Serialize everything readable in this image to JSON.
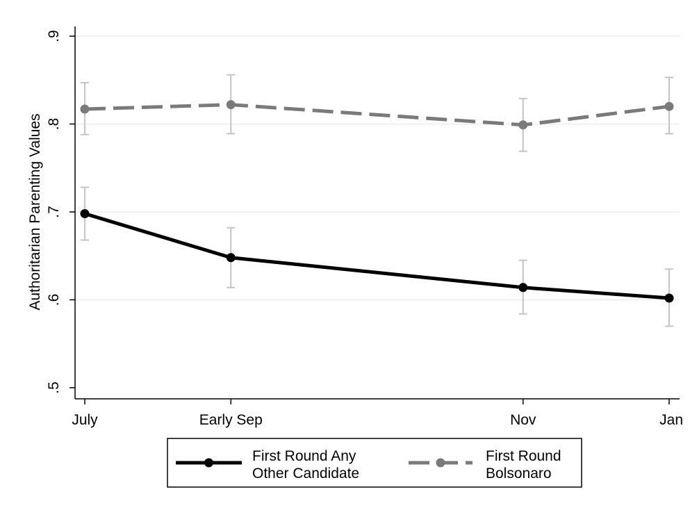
{
  "chart_data": {
    "type": "line",
    "title": "",
    "xlabel": "",
    "ylabel": "Authoritarian Parenting Values",
    "categories": [
      "July",
      "Early Sep",
      "Nov",
      "Jan"
    ],
    "x_positions": [
      0,
      1,
      3,
      4
    ],
    "xlim": [
      0,
      4
    ],
    "ylim": [
      0.5,
      0.9
    ],
    "yticks": [
      0.5,
      0.6,
      0.7,
      0.8,
      0.9
    ],
    "ytick_labels": [
      ".5",
      ".6",
      ".7",
      ".8",
      ".9"
    ],
    "grid": true,
    "legend_position": "bottom",
    "series": [
      {
        "name": "First Round Any Other Candidate",
        "legend_lines": [
          "First Round Any",
          "Other Candidate"
        ],
        "values": [
          0.698,
          0.648,
          0.614,
          0.602
        ],
        "ci_low": [
          0.668,
          0.614,
          0.584,
          0.57
        ],
        "ci_high": [
          0.728,
          0.682,
          0.645,
          0.635
        ],
        "color": "#000000",
        "dash": "solid"
      },
      {
        "name": "First Round Bolsonaro",
        "legend_lines": [
          "First Round",
          "Bolsonaro"
        ],
        "values": [
          0.817,
          0.822,
          0.799,
          0.82
        ],
        "ci_low": [
          0.788,
          0.789,
          0.769,
          0.789
        ],
        "ci_high": [
          0.847,
          0.856,
          0.829,
          0.853
        ],
        "color": "#7a7a7a",
        "dash": "dashed"
      }
    ],
    "error_bar_color": "#c4c4c4",
    "grid_color": "#e6eef0"
  }
}
